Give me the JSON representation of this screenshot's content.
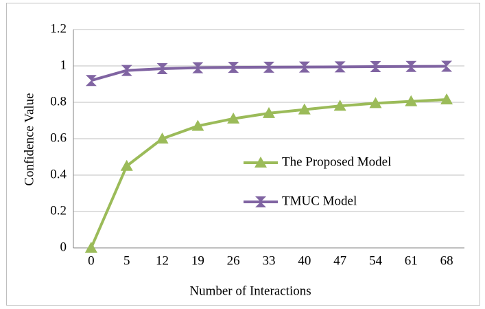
{
  "chart_data": {
    "type": "line",
    "x_label": "Number of Interactions",
    "y_label": "Confidence Value",
    "categories": [
      "0",
      "5",
      "12",
      "19",
      "26",
      "33",
      "40",
      "47",
      "54",
      "61",
      "68"
    ],
    "series": [
      {
        "name": "The Proposed Model",
        "color": "#9bbb59",
        "marker": "triangle",
        "values": [
          0,
          0.45,
          0.6,
          0.67,
          0.71,
          0.74,
          0.76,
          0.78,
          0.795,
          0.805,
          0.815
        ]
      },
      {
        "name": "TMUC Model",
        "color": "#8064a2",
        "marker": "hourglass",
        "values": [
          0.92,
          0.975,
          0.985,
          0.99,
          0.992,
          0.993,
          0.994,
          0.995,
          0.996,
          0.997,
          0.998
        ]
      }
    ],
    "ylim": [
      0,
      1.2
    ],
    "yticks": [
      0,
      0.2,
      0.4,
      0.6,
      0.8,
      1,
      1.2
    ],
    "grid": true
  }
}
